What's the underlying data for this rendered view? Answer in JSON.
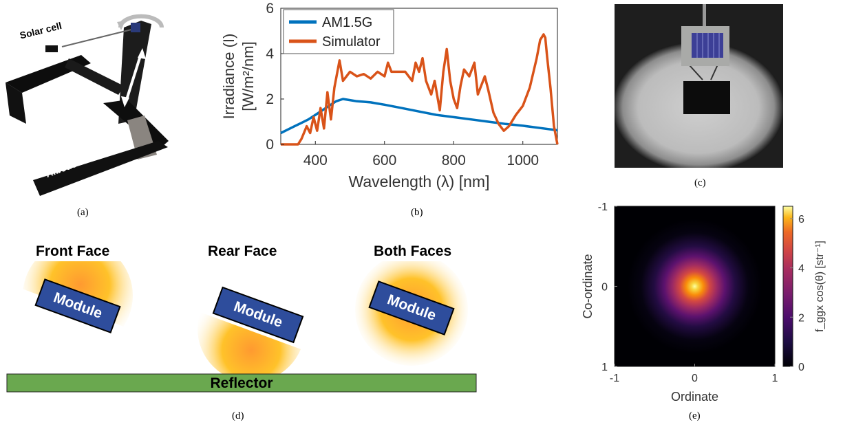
{
  "panel_a": {
    "caption": "(a)",
    "solar_cell_label": "Solar cell",
    "albedo_holder_label": "Albedo Holder"
  },
  "panel_b": {
    "caption": "(b)"
  },
  "panel_c": {
    "caption": "(c)"
  },
  "panel_d": {
    "caption": "(d)",
    "front_label": "Front Face",
    "rear_label": "Rear Face",
    "both_label": "Both Faces",
    "module_label": "Module",
    "reflector_label": "Reflector",
    "colors": {
      "reflector": "#6aa84f",
      "module": "#2e4d9c",
      "glow": "#ffb000"
    }
  },
  "panel_e": {
    "caption": "(e)"
  },
  "chart_data": [
    {
      "type": "line",
      "id": "b",
      "xlabel": "Wavelength (λ) [nm]",
      "ylabel_line1": "Irradiance (I)",
      "ylabel_line2": "[W/m²/nm]",
      "xlim": [
        300,
        1100
      ],
      "ylim": [
        0,
        6
      ],
      "xticks": [
        400,
        600,
        800,
        1000
      ],
      "yticks": [
        0,
        2,
        4,
        6
      ],
      "legend_position": "top-left",
      "series": [
        {
          "name": "AM1.5G",
          "color": "#0072bd",
          "x": [
            300,
            320,
            340,
            360,
            380,
            400,
            420,
            440,
            460,
            480,
            500,
            520,
            540,
            560,
            580,
            600,
            650,
            700,
            750,
            800,
            850,
            900,
            950,
            1000,
            1050,
            1100
          ],
          "y": [
            0.5,
            0.65,
            0.8,
            0.95,
            1.1,
            1.3,
            1.5,
            1.7,
            1.9,
            2.0,
            1.95,
            1.9,
            1.88,
            1.85,
            1.8,
            1.75,
            1.6,
            1.45,
            1.3,
            1.2,
            1.1,
            1.0,
            0.9,
            0.82,
            0.72,
            0.62
          ]
        },
        {
          "name": "Simulator",
          "color": "#d95319",
          "x": [
            300,
            350,
            360,
            375,
            385,
            395,
            405,
            415,
            425,
            435,
            445,
            455,
            470,
            480,
            490,
            500,
            520,
            540,
            560,
            580,
            600,
            610,
            620,
            640,
            660,
            680,
            690,
            700,
            710,
            720,
            735,
            745,
            760,
            770,
            780,
            790,
            800,
            810,
            820,
            830,
            845,
            860,
            870,
            880,
            890,
            900,
            915,
            930,
            945,
            960,
            980,
            1000,
            1020,
            1040,
            1050,
            1060,
            1065,
            1070,
            1080,
            1090,
            1100
          ],
          "y": [
            0,
            0,
            0.25,
            0.8,
            0.5,
            1.2,
            0.6,
            1.6,
            0.7,
            2.3,
            1.1,
            2.5,
            3.7,
            2.8,
            3.0,
            3.2,
            3.0,
            3.1,
            2.9,
            3.2,
            3.0,
            3.6,
            3.2,
            3.2,
            3.2,
            2.8,
            3.6,
            3.2,
            3.8,
            2.8,
            2.2,
            2.8,
            1.5,
            3.2,
            4.2,
            2.8,
            2.0,
            1.6,
            2.6,
            3.3,
            3.0,
            3.6,
            2.2,
            2.6,
            3.0,
            2.4,
            1.4,
            0.9,
            0.6,
            0.8,
            1.3,
            1.7,
            2.5,
            3.8,
            4.6,
            4.85,
            4.7,
            3.9,
            2.5,
            0.8,
            0
          ]
        }
      ]
    },
    {
      "type": "heatmap",
      "id": "e",
      "xlabel": "Ordinate",
      "ylabel": "Co-ordinate",
      "xlim": [
        -1,
        1
      ],
      "ylim": [
        1,
        -1
      ],
      "xticks": [
        -1,
        0,
        1
      ],
      "yticks": [
        -1,
        0,
        1
      ],
      "colorbar_label": "f_ggx cos(θ) [str⁻¹]",
      "colorbar_ticks": [
        0,
        2,
        4,
        6
      ],
      "colorbar_range": [
        0,
        6.5
      ],
      "peak_value": 6.5,
      "peak_at": [
        0,
        0
      ]
    }
  ]
}
